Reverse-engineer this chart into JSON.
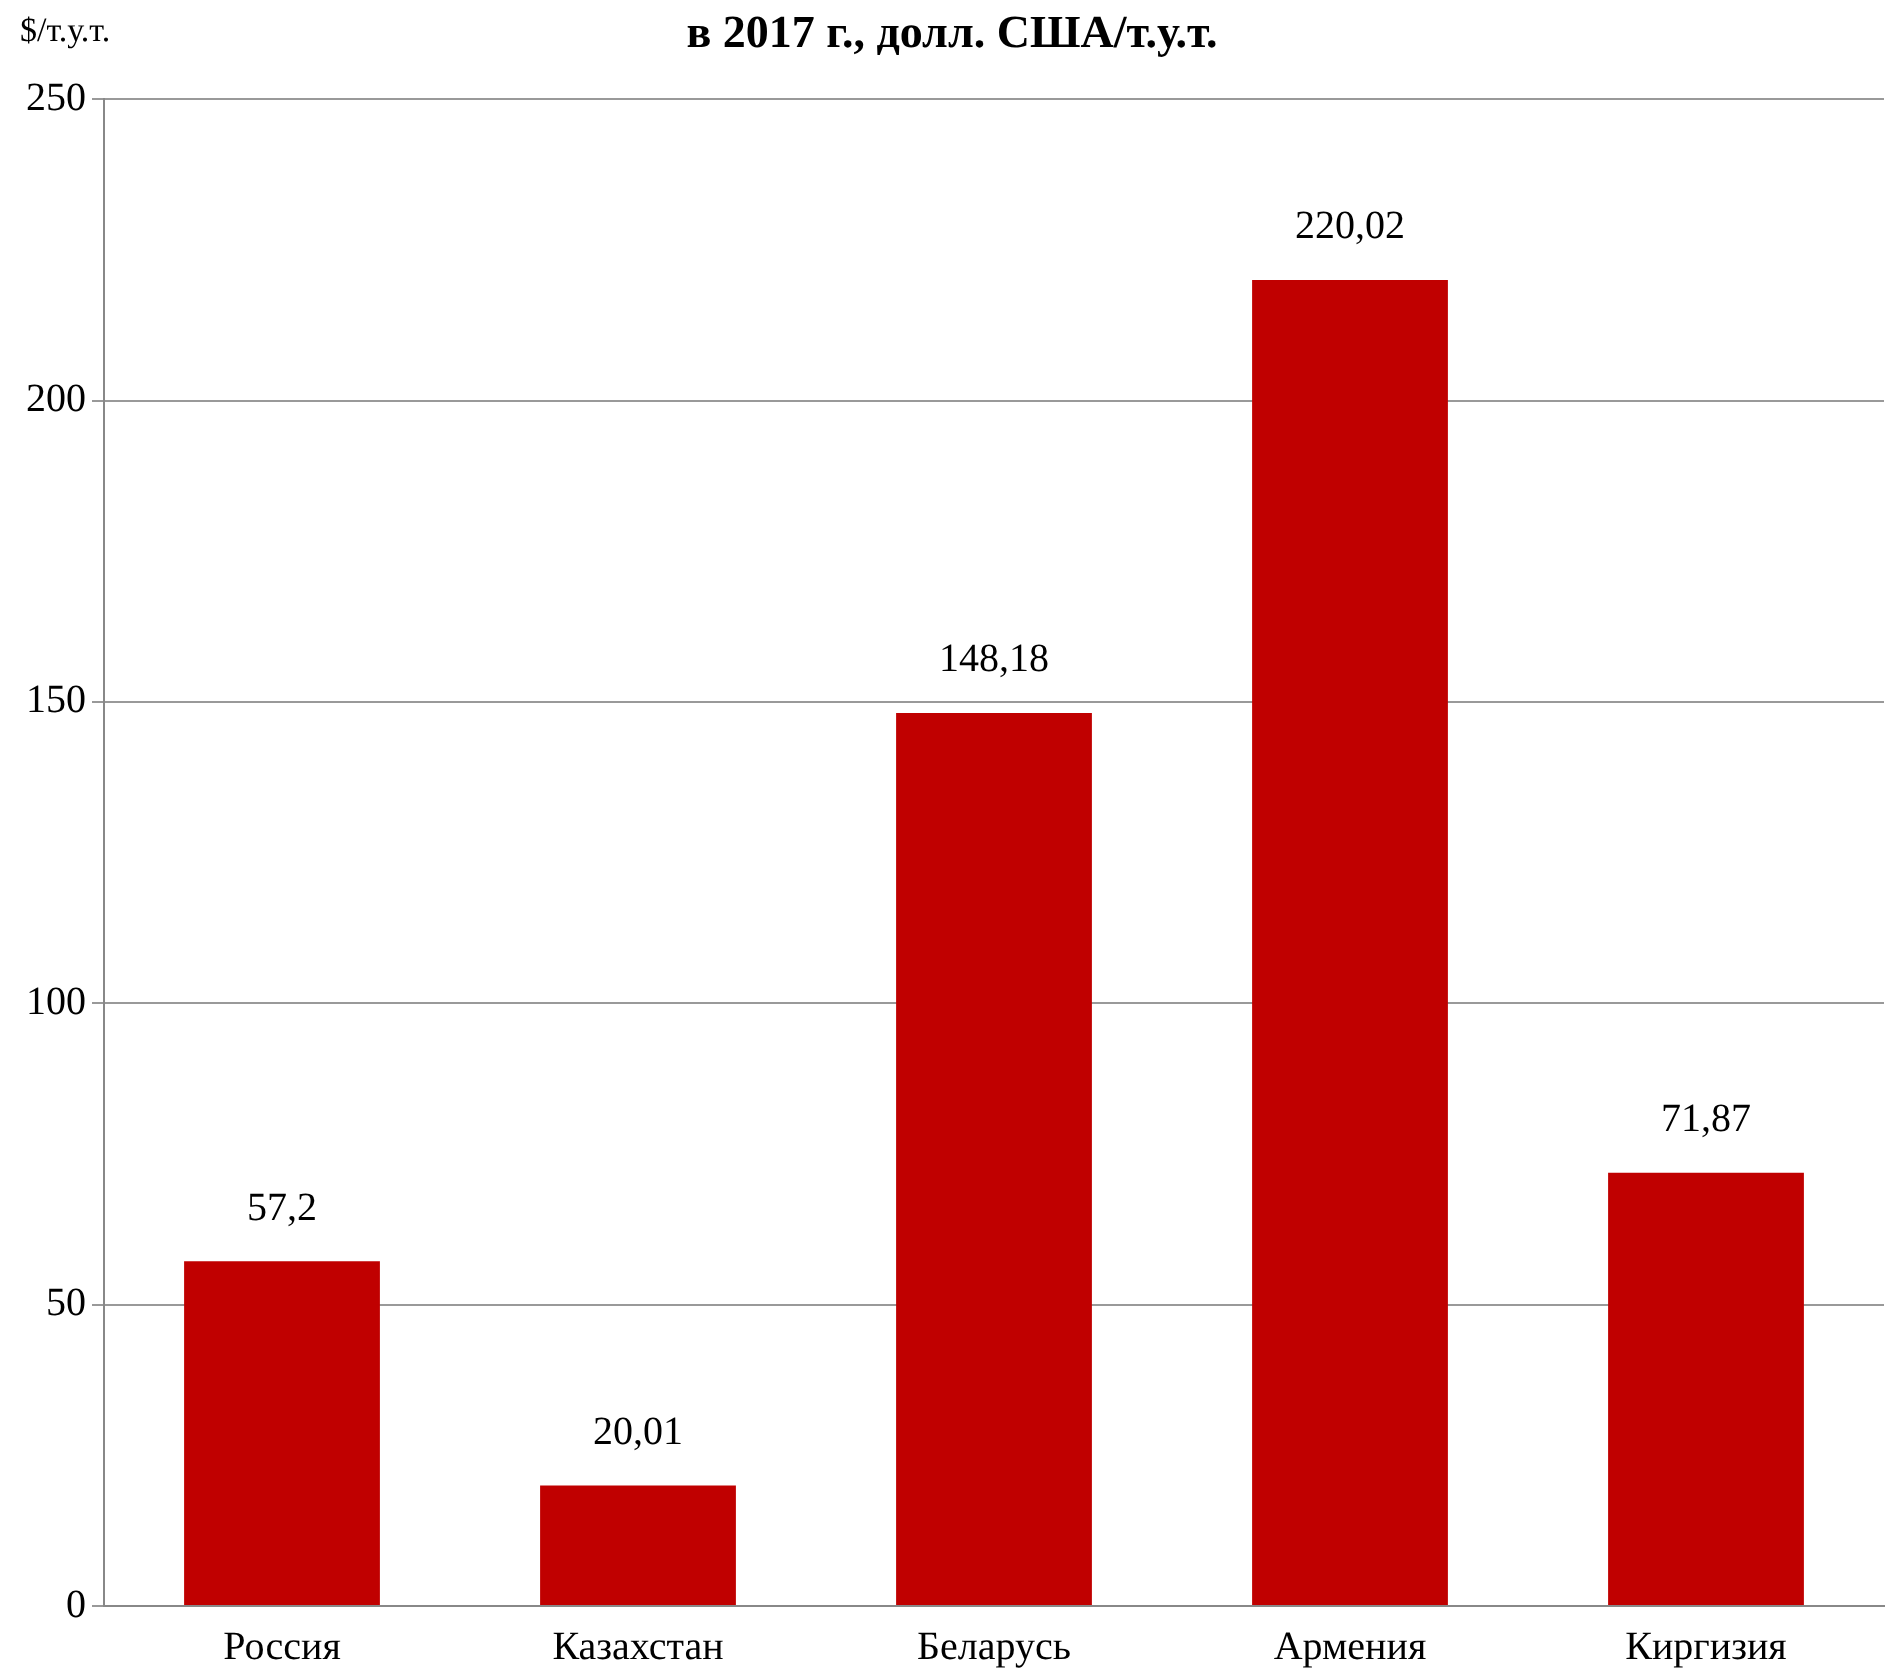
{
  "chart_data": {
    "type": "bar",
    "title": "в 2017 г., долл. США/т.у.т.",
    "ylabel": "$/т.у.т.",
    "categories": [
      "Россия",
      "Казахстан",
      "Беларусь",
      "Армения",
      "Киргизия"
    ],
    "values": [
      57.2,
      20.01,
      148.18,
      220.02,
      71.87
    ],
    "value_labels": [
      "57,2",
      "20,01",
      "148,18",
      "220,02",
      "71,87"
    ],
    "color": "#c00000",
    "ylim": [
      0,
      250
    ],
    "yticks": [
      0,
      50,
      100,
      150,
      200,
      250
    ],
    "grid": "y",
    "legend": false
  }
}
